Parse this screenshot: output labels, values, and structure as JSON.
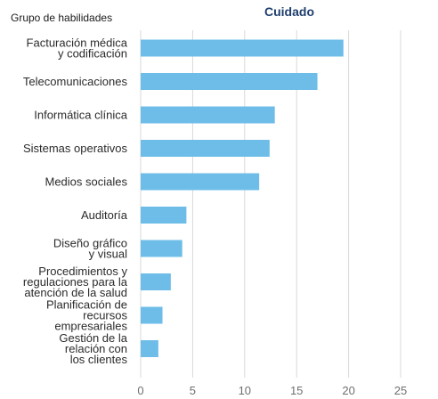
{
  "chart_data": {
    "type": "bar",
    "orientation": "horizontal",
    "title": "Cuidado",
    "category_header": "Grupo de habilidades",
    "categories": [
      "Facturación médica y codificación",
      "Telecomunicaciones",
      "Informática clínica",
      "Sistemas operativos",
      "Medios sociales",
      "Auditoría",
      "Diseño gráfico y visual",
      "Procedimientos y regulaciones para la atención de la salud",
      "Planificación de recursos empresariales",
      "Gestión de la relación con los clientes"
    ],
    "category_lines": [
      [
        "Facturación médica",
        "y codificación"
      ],
      [
        "Telecomunicaciones"
      ],
      [
        "Informática clínica"
      ],
      [
        "Sistemas operativos"
      ],
      [
        "Medios sociales"
      ],
      [
        "Auditoría"
      ],
      [
        "Diseño gráfico",
        "y visual"
      ],
      [
        "Procedimientos y",
        "regulaciones para la",
        "atención de la salud"
      ],
      [
        "Planificación de",
        "recursos",
        "empresariales"
      ],
      [
        "Gestión de la",
        "relación con",
        "los clientes"
      ]
    ],
    "values": [
      19.5,
      17.0,
      12.9,
      12.4,
      11.4,
      4.4,
      4.0,
      2.9,
      2.1,
      1.7
    ],
    "xlim": [
      0,
      25
    ],
    "xticks": [
      0,
      5,
      10,
      15,
      20,
      25
    ],
    "xlabel": "",
    "ylabel": "",
    "grid": "vertical",
    "bar_color": "#6dbde8",
    "grid_color": "#d9d9d9",
    "title_color": "#1f3f6e"
  }
}
